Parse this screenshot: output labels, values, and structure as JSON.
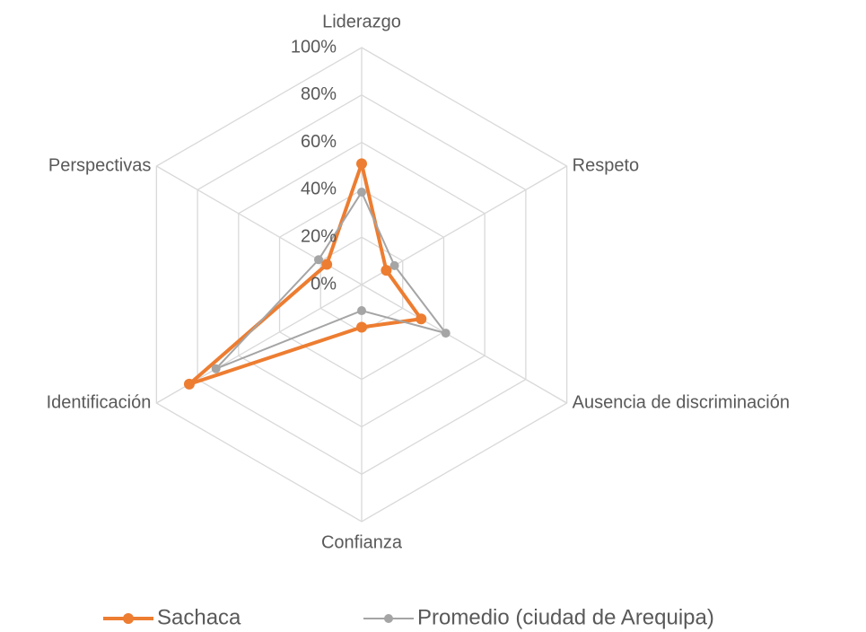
{
  "chart_data": {
    "type": "radar",
    "categories": [
      "Liderazgo",
      "Respeto",
      "Ausencia de discriminación",
      "Confianza",
      "Identificación",
      "Perspectivas"
    ],
    "series": [
      {
        "name": "Sachaca",
        "color": "#ED7D31",
        "values": [
          51,
          12,
          29,
          18,
          84,
          17
        ]
      },
      {
        "name": "Promedio (ciudad de Arequipa)",
        "color": "#A5A5A5",
        "values": [
          39,
          16,
          41,
          11,
          71,
          21
        ]
      }
    ],
    "ylim": [
      0,
      100
    ],
    "yticks": [
      {
        "value": 0,
        "label": "0%"
      },
      {
        "value": 20,
        "label": "20%"
      },
      {
        "value": 40,
        "label": "40%"
      },
      {
        "value": 60,
        "label": "60%"
      },
      {
        "value": 80,
        "label": "80%"
      },
      {
        "value": 100,
        "label": "100%"
      }
    ],
    "grid": true,
    "legend": "bottom"
  }
}
